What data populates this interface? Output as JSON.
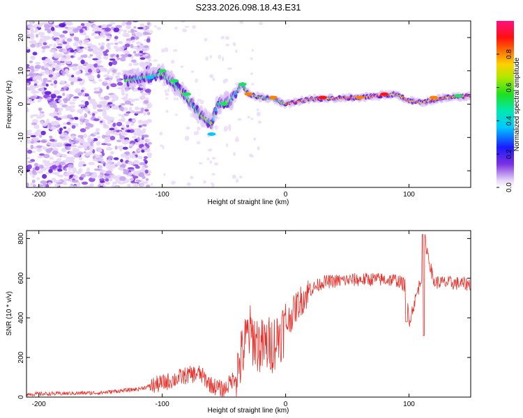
{
  "title": "S233.2026.098.18.43.E31",
  "chart_data": [
    {
      "type": "heatmap",
      "name": "spectrogram",
      "xlabel": "Height of straight line (km)",
      "ylabel": "Frequency (Hz)",
      "xlim": [
        -210,
        150
      ],
      "ylim": [
        -25,
        25
      ],
      "xticks": [
        -200,
        -100,
        0,
        100
      ],
      "yticks": [
        -20,
        -10,
        0,
        10,
        20
      ],
      "colorbar": {
        "label": "Normalized spectral amplitude",
        "range": [
          0,
          1
        ],
        "ticks": [
          "0.0",
          "0.2",
          "0.4",
          "0.6",
          "0.8"
        ],
        "tick_values": [
          0,
          0.2,
          0.4,
          0.6,
          0.8
        ]
      },
      "ridge": {
        "description_points": [
          {
            "x": -115,
            "y": 8
          },
          {
            "x": -100,
            "y": 9
          },
          {
            "x": -90,
            "y": 6
          },
          {
            "x": -80,
            "y": 2
          },
          {
            "x": -70,
            "y": -3
          },
          {
            "x": -60,
            "y": -6
          },
          {
            "x": -55,
            "y": 0
          },
          {
            "x": -45,
            "y": 1
          },
          {
            "x": -35,
            "y": 6
          },
          {
            "x": -30,
            "y": 3
          },
          {
            "x": -20,
            "y": 2
          },
          {
            "x": -10,
            "y": 1.5
          },
          {
            "x": 0,
            "y": 0
          },
          {
            "x": 20,
            "y": 1.5
          },
          {
            "x": 60,
            "y": 2
          },
          {
            "x": 90,
            "y": 3
          },
          {
            "x": 100,
            "y": 1
          },
          {
            "x": 110,
            "y": 0.5
          },
          {
            "x": 130,
            "y": 2
          },
          {
            "x": 150,
            "y": 2.5
          }
        ]
      }
    },
    {
      "type": "line",
      "name": "snr",
      "xlabel": "Height of straight line (km)",
      "ylabel": "SNR (10 * v/v)",
      "xlim": [
        -210,
        150
      ],
      "ylim": [
        0,
        840
      ],
      "xticks": [
        -200,
        -100,
        0,
        100
      ],
      "yticks": [
        0,
        200,
        400,
        600,
        800
      ],
      "series": [
        {
          "name": "SNR",
          "color": "#e8302a",
          "x": [
            -210,
            -180,
            -150,
            -120,
            -100,
            -90,
            -80,
            -70,
            -60,
            -50,
            -40,
            -30,
            -20,
            -10,
            0,
            10,
            20,
            30,
            50,
            70,
            90,
            98,
            100,
            110,
            112,
            120,
            150
          ],
          "y": [
            15,
            18,
            22,
            40,
            70,
            90,
            110,
            120,
            60,
            35,
            110,
            330,
            250,
            270,
            360,
            470,
            540,
            580,
            590,
            595,
            590,
            560,
            380,
            600,
            820,
            580,
            570
          ]
        }
      ]
    }
  ]
}
